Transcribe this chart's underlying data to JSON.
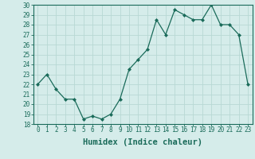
{
  "x": [
    0,
    1,
    2,
    3,
    4,
    5,
    6,
    7,
    8,
    9,
    10,
    11,
    12,
    13,
    14,
    15,
    16,
    17,
    18,
    19,
    20,
    21,
    22,
    23
  ],
  "y": [
    22,
    23,
    21.5,
    20.5,
    20.5,
    18.5,
    18.8,
    18.5,
    19,
    20.5,
    23.5,
    24.5,
    25.5,
    28.5,
    27,
    29.5,
    29,
    28.5,
    28.5,
    30,
    28,
    28,
    27,
    22
  ],
  "line_color": "#1a6b5a",
  "marker_color": "#1a6b5a",
  "bg_color": "#d5ecea",
  "grid_color": "#b8d8d4",
  "xlabel": "Humidex (Indice chaleur)",
  "ylim": [
    18,
    30
  ],
  "xlim": [
    -0.5,
    23.5
  ],
  "yticks": [
    18,
    19,
    20,
    21,
    22,
    23,
    24,
    25,
    26,
    27,
    28,
    29,
    30
  ],
  "xticks": [
    0,
    1,
    2,
    3,
    4,
    5,
    6,
    7,
    8,
    9,
    10,
    11,
    12,
    13,
    14,
    15,
    16,
    17,
    18,
    19,
    20,
    21,
    22,
    23
  ],
  "tick_fontsize": 5.5,
  "xlabel_fontsize": 7.5
}
